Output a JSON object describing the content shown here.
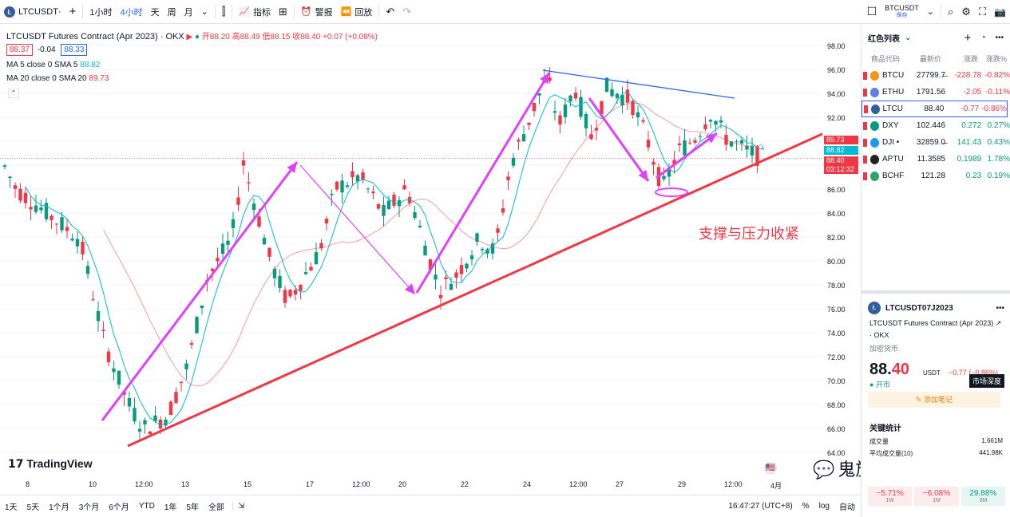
{
  "topbar": {
    "symbol": "LTCUSDT",
    "symbol_full": "LTCUSDT·",
    "add": "+",
    "intervals": [
      "1小时",
      "4小时",
      "天",
      "周",
      "月"
    ],
    "active_interval": "4小时",
    "indicators": "指标",
    "alert": "警报",
    "replay": "回放",
    "layout_symbol": "BTCUSDT",
    "layout_status": "保存"
  },
  "legend": {
    "title": "LTCUSDT Futures Contract (Apr 2023) · OKX",
    "open": "开88.20",
    "high": "高88.49",
    "low": "低88.15",
    "close": "收88.40",
    "change": "+0.07 (+0.08%)",
    "bid": "88.37",
    "spread": "-0.04",
    "ask": "88.33",
    "ma5_label": "MA 5 close 0 SMA 5",
    "ma5_value": "88.82",
    "ma20_label": "MA 20 close 0 SMA 20",
    "ma20_value": "89.73"
  },
  "annotation": "支撑与压力收紧",
  "price_axis": [
    "98.00",
    "96.00",
    "94.00",
    "92.00",
    "90.00",
    "88.00",
    "86.00",
    "84.00",
    "82.00",
    "80.00",
    "78.00",
    "76.00",
    "74.00",
    "72.00",
    "70.00",
    "68.00",
    "66.00",
    "64.00"
  ],
  "price_labels": {
    "ma20": "89.73",
    "ma5": "88.82",
    "last": "88.40",
    "countdown": "03:12:32"
  },
  "time_axis": [
    "8",
    "10",
    "12:00",
    "13",
    "15",
    "17",
    "12:00",
    "20",
    "22",
    "24",
    "12:00",
    "27",
    "29",
    "12:00",
    "4月"
  ],
  "tradingview": "TradingView",
  "bottombar": {
    "ranges": [
      "1天",
      "5天",
      "1个月",
      "3个月",
      "6个月",
      "YTD",
      "1年",
      "5年",
      "全部"
    ],
    "time": "16:47:27 (UTC+8)",
    "pct": "%",
    "log": "log",
    "auto": "自动"
  },
  "watchlist": {
    "title": "红色列表",
    "headers": [
      "商品代码",
      "最新价",
      "涨跌",
      "涨跌%"
    ],
    "rows": [
      {
        "sym": "BTCU",
        "last": "27799.7̶",
        "chg": "-228.78",
        "pct": "-0.82%",
        "color": "#f7931a",
        "dir": "neg"
      },
      {
        "sym": "ETHU",
        "last": "1791.56",
        "chg": "-2.05",
        "pct": "-0.11%",
        "color": "#627eea",
        "dir": "neg"
      },
      {
        "sym": "LTCU",
        "last": "88.40",
        "chg": "-0.77",
        "pct": "-0.86%",
        "color": "#345d9d",
        "dir": "neg"
      },
      {
        "sym": "DXY",
        "last": "102.446",
        "chg": "0.272",
        "pct": "0.27%",
        "color": "#089981",
        "dir": "pos"
      },
      {
        "sym": "DJI •",
        "last": "32859.0̶",
        "chg": "141.43",
        "pct": "0.43%",
        "color": "#2196f3",
        "dir": "pos"
      },
      {
        "sym": "APTU",
        "last": "11.3585",
        "chg": "0.1989",
        "pct": "1.78%",
        "color": "#222222",
        "dir": "pos"
      },
      {
        "sym": "BCHF",
        "last": "121.28",
        "chg": "0.23",
        "pct": "0.19%",
        "color": "#2ea36b",
        "dir": "pos"
      }
    ]
  },
  "detail": {
    "symbol": "LTCUSDT07J2023",
    "name": "LTCUSDT Futures Contract (Apr 2023)",
    "exchange": "· OKX",
    "category": "加密货币",
    "price_int": "88.",
    "price_dec": "40",
    "currency": "USDT",
    "change": "−0.77 (−0.86%)",
    "status": "开市",
    "depth": "市场深度",
    "add_note": "添加笔记",
    "stats_title": "关键统计",
    "vol_label": "成交量",
    "vol": "1.661M",
    "avgvol_label": "平均成交量(10)",
    "avgvol": "441.98K",
    "perf": [
      {
        "v": "−5.71%",
        "p": "1W"
      },
      {
        "v": "−6.08%",
        "p": "1M"
      },
      {
        "v": "29.88%",
        "p": "3M"
      }
    ]
  },
  "watermark": "鬼族研习社",
  "chart_data": {
    "type": "candlestick",
    "y_range": [
      63,
      99
    ],
    "lines": {
      "support_color": "#f23645",
      "trend_color": "#e040fb",
      "resistance_color": "#2962ff"
    }
  }
}
